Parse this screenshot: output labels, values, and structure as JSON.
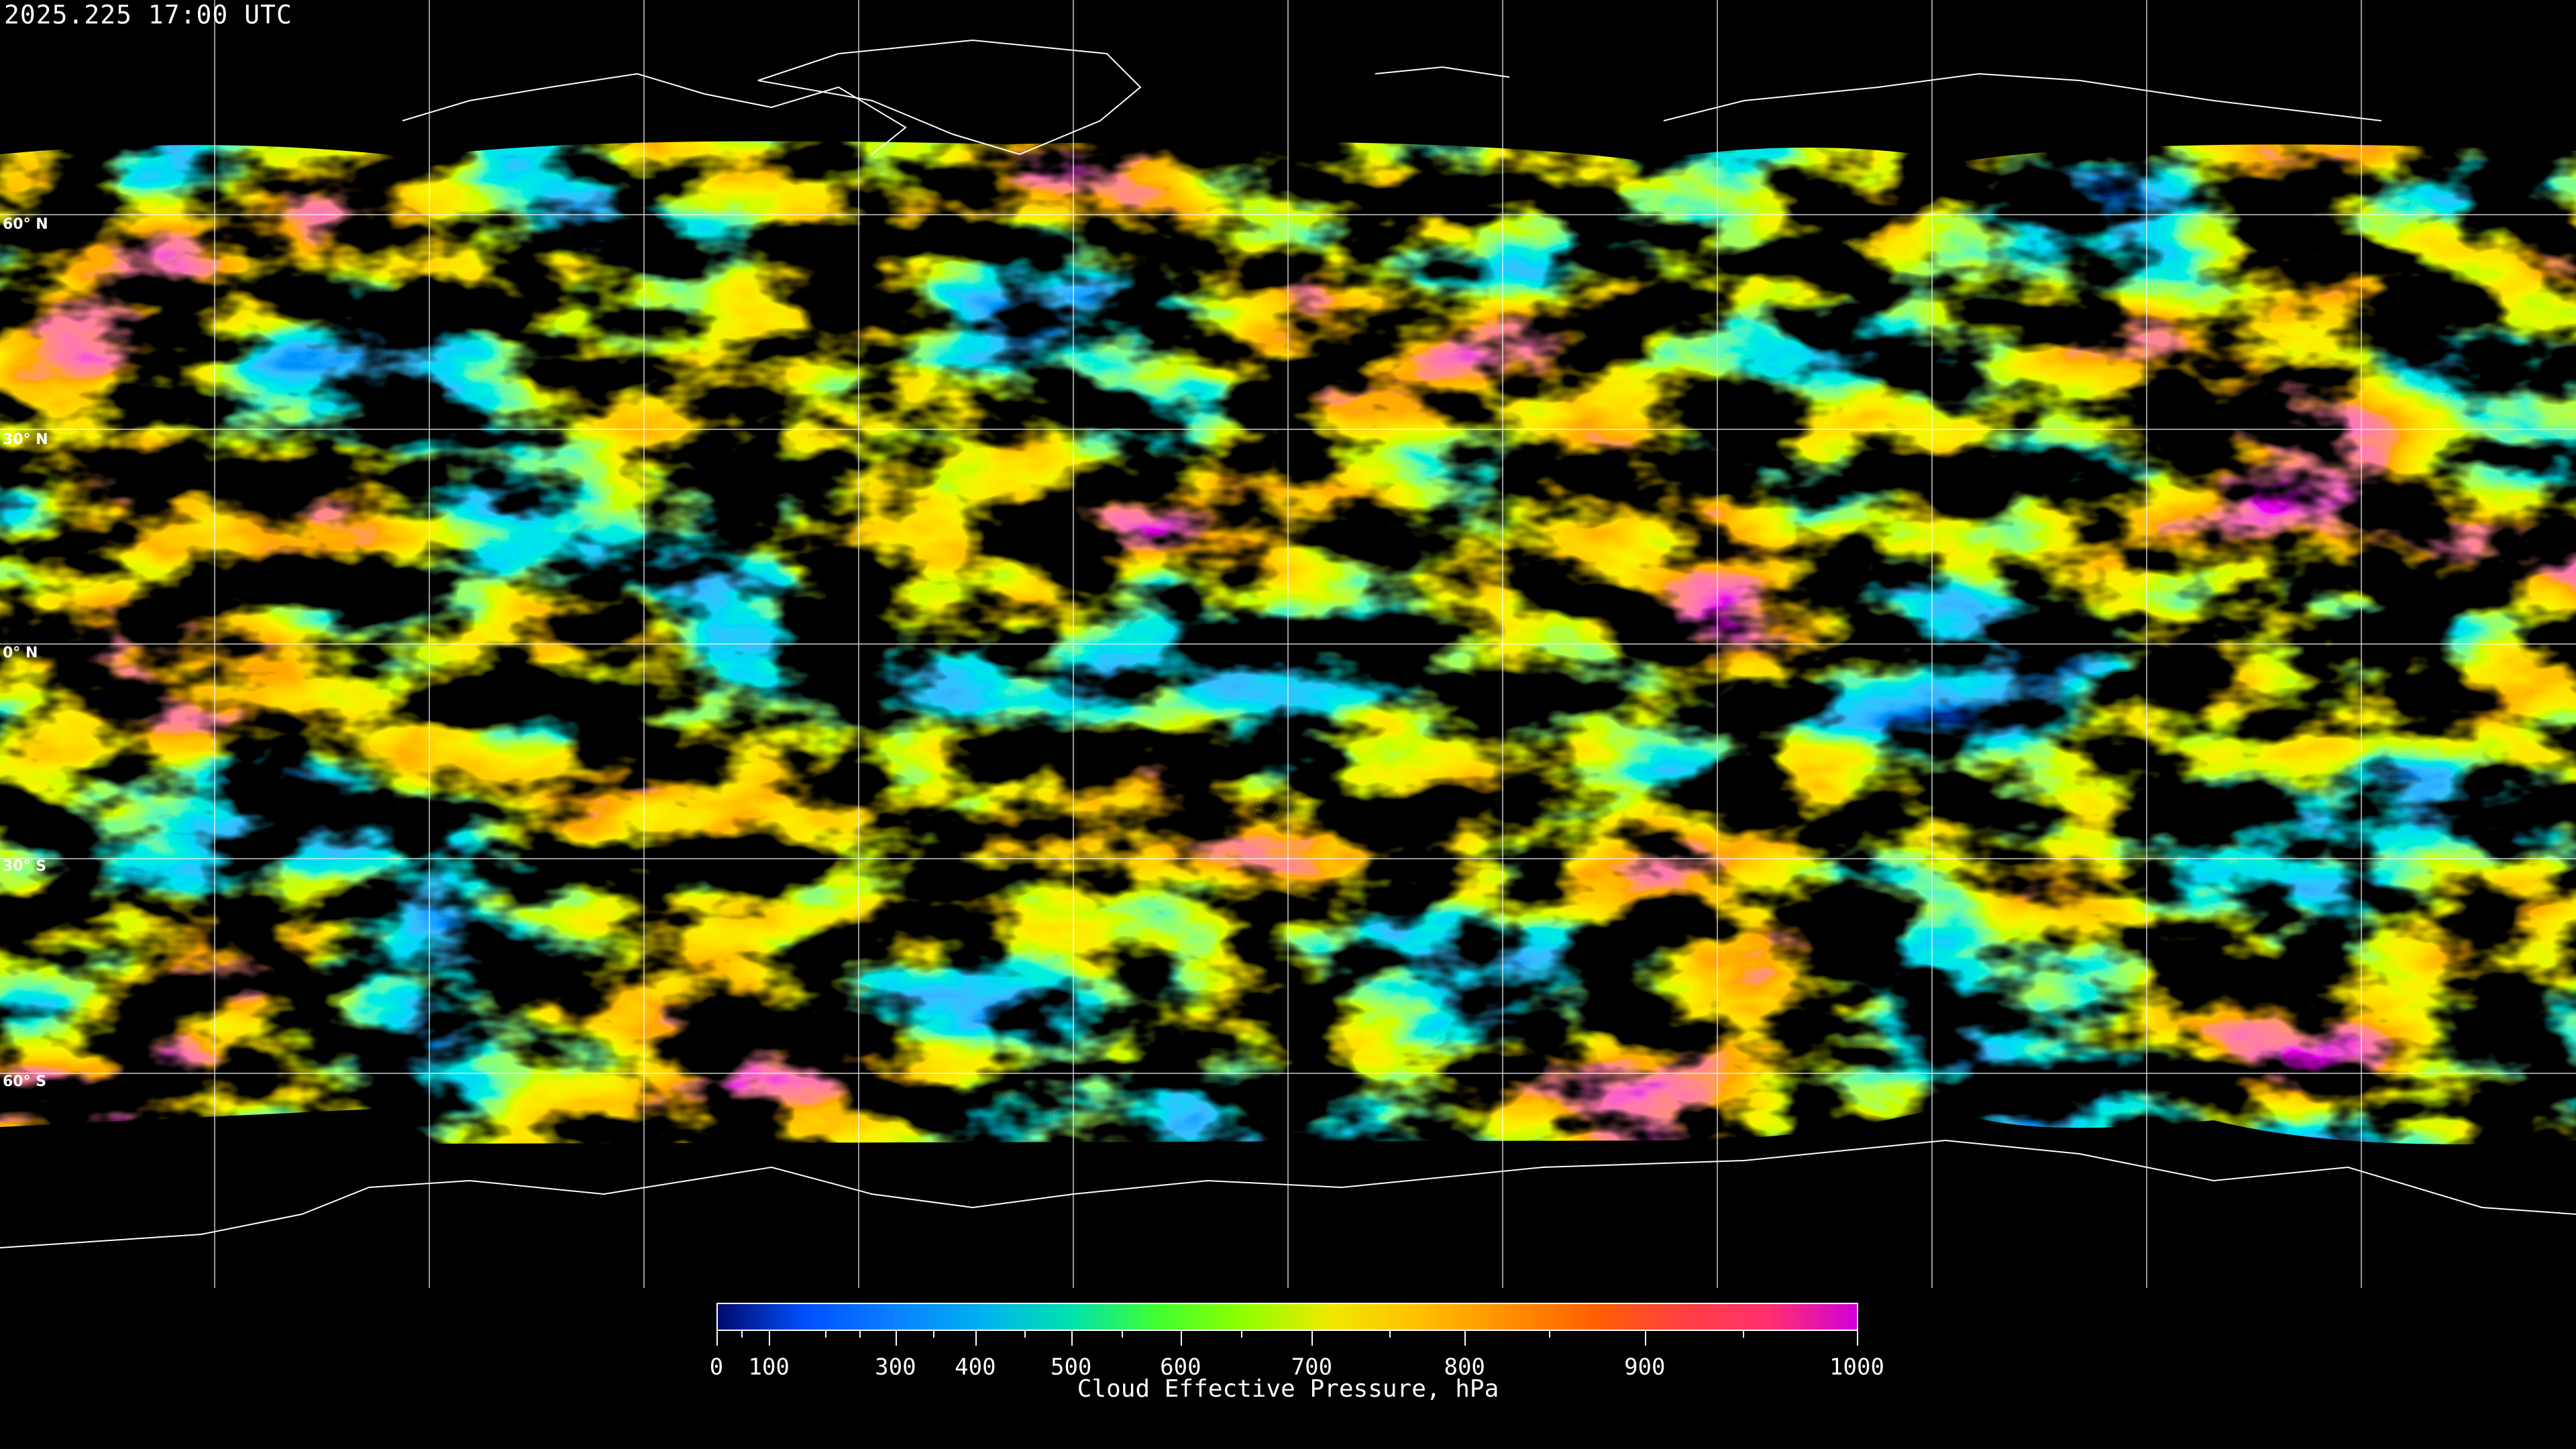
{
  "timestamp": "2025.225 17:00 UTC",
  "latitude_labels": [
    "60° N",
    "30° N",
    "0° N",
    "30° S",
    "60° S"
  ],
  "colorbar": {
    "title": "Cloud Effective Pressure, hPa",
    "range": [
      0,
      1000
    ],
    "tick_labels": [
      "0",
      "100",
      "300",
      "400",
      "500",
      "600",
      "700",
      "800",
      "900",
      "1000"
    ],
    "colors": [
      "#000a6e",
      "#0050ff",
      "#0a80ff",
      "#00b0f0",
      "#00e0b0",
      "#40ff30",
      "#90ff00",
      "#f0e800",
      "#ffc000",
      "#ff9000",
      "#ff6000",
      "#ff4040",
      "#ff3070",
      "#d000d8"
    ]
  },
  "map": {
    "projection": "equirectangular",
    "background": "#000000",
    "grid_color": "#ffffff",
    "coastline_color": "#ffffff",
    "grid_spacing_degrees": 30
  }
}
